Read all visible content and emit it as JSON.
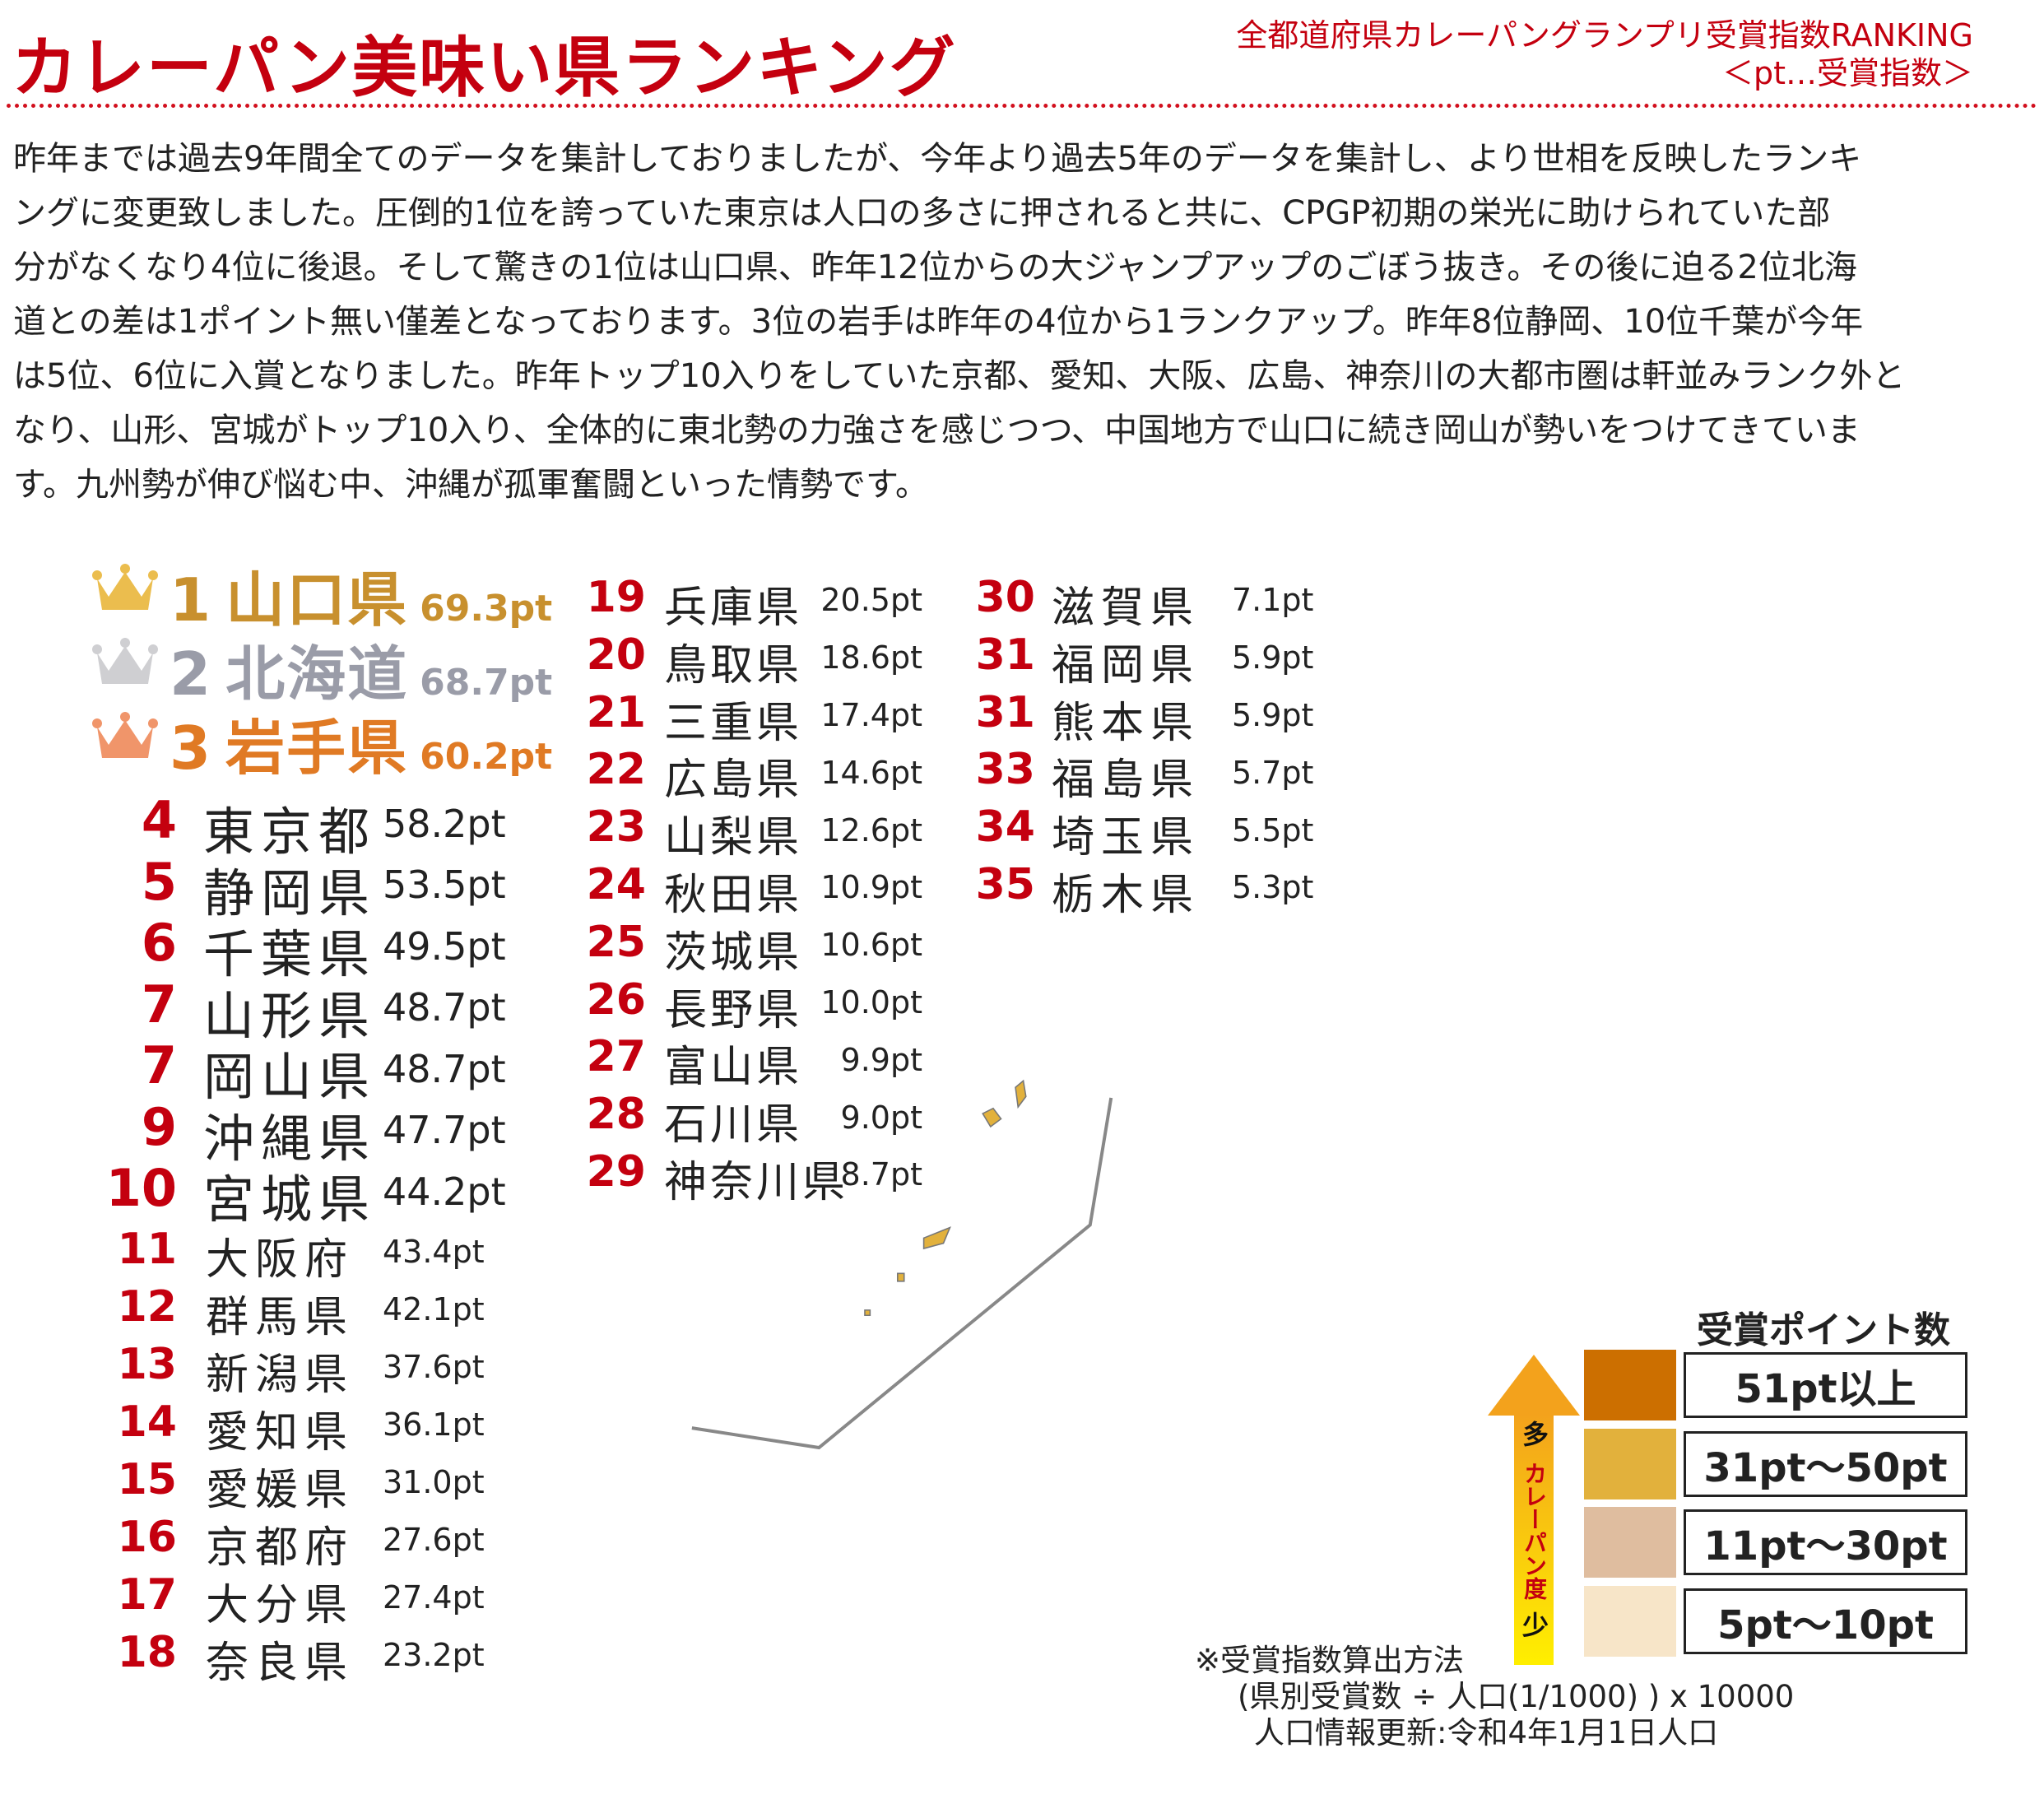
{
  "header": {
    "title": "カレーパン美味い県ランキング",
    "subtitle_line1": "全都道府県カレーパングランプリ受賞指数RANKING",
    "subtitle_line2": "＜pt…受賞指数＞"
  },
  "intro_lines": [
    "昨年までは過去9年間全てのデータを集計しておりましたが、今年より過去5年のデータを集計し、より世相を反映したランキ",
    "ングに変更致しました。圧倒的1位を誇っていた東京は人口の多さに押されると共に、CPGP初期の栄光に助けられていた部",
    "分がなくなり4位に後退。そして驚きの1位は山口県、昨年12位からの大ジャンプアップのごぼう抜き。その後に迫る2位北海",
    "道との差は1ポイント無い僅差となっております。3位の岩手は昨年の4位から1ランクアップ。昨年8位静岡、10位千葉が今年",
    "は5位、6位に入賞となりました。昨年トップ10入りをしていた京都、愛知、大阪、広島、神奈川の大都市圏は軒並みランク外と",
    "なり、山形、宮城がトップ10入り、全体的に東北勢の力強さを感じつつ、中国地方で山口に続き岡山が勢いをつけてきていま",
    "す。九州勢が伸び悩む中、沖縄が孤軍奮闘といった情勢です。"
  ],
  "top3": [
    {
      "rank": "1",
      "name": "山口県",
      "pt": "69.3pt",
      "color": "#c8902e",
      "crown": "#ebbd4e"
    },
    {
      "rank": "2",
      "name": "北海道",
      "pt": "68.7pt",
      "color": "#9a9ca8",
      "crown": "#cfcfd2"
    },
    {
      "rank": "3",
      "name": "岩手県",
      "pt": "60.2pt",
      "color": "#e07a24",
      "crown": "#f0956a"
    }
  ],
  "ranks_4_10": [
    {
      "rank": "4",
      "name": "東京都",
      "pt": "58.2pt"
    },
    {
      "rank": "5",
      "name": "静岡県",
      "pt": "53.5pt"
    },
    {
      "rank": "6",
      "name": "千葉県",
      "pt": "49.5pt"
    },
    {
      "rank": "7",
      "name": "山形県",
      "pt": "48.7pt"
    },
    {
      "rank": "7",
      "name": "岡山県",
      "pt": "48.7pt"
    },
    {
      "rank": "9",
      "name": "沖縄県",
      "pt": "47.7pt"
    },
    {
      "rank": "10",
      "name": "宮城県",
      "pt": "44.2pt"
    }
  ],
  "ranks_11_18": [
    {
      "rank": "11",
      "name": "大阪府",
      "pt": "43.4pt"
    },
    {
      "rank": "12",
      "name": "群馬県",
      "pt": "42.1pt"
    },
    {
      "rank": "13",
      "name": "新潟県",
      "pt": "37.6pt"
    },
    {
      "rank": "14",
      "name": "愛知県",
      "pt": "36.1pt"
    },
    {
      "rank": "15",
      "name": "愛媛県",
      "pt": "31.0pt"
    },
    {
      "rank": "16",
      "name": "京都府",
      "pt": "27.6pt"
    },
    {
      "rank": "17",
      "name": "大分県",
      "pt": "27.4pt"
    },
    {
      "rank": "18",
      "name": "奈良県",
      "pt": "23.2pt"
    }
  ],
  "ranks_19_29": [
    {
      "rank": "19",
      "name": "兵庫県",
      "pt": "20.5pt"
    },
    {
      "rank": "20",
      "name": "鳥取県",
      "pt": "18.6pt"
    },
    {
      "rank": "21",
      "name": "三重県",
      "pt": "17.4pt"
    },
    {
      "rank": "22",
      "name": "広島県",
      "pt": "14.6pt"
    },
    {
      "rank": "23",
      "name": "山梨県",
      "pt": "12.6pt"
    },
    {
      "rank": "24",
      "name": "秋田県",
      "pt": "10.9pt"
    },
    {
      "rank": "25",
      "name": "茨城県",
      "pt": "10.6pt"
    },
    {
      "rank": "26",
      "name": "長野県",
      "pt": "10.0pt"
    },
    {
      "rank": "27",
      "name": "富山県",
      "pt": "9.9pt"
    },
    {
      "rank": "28",
      "name": "石川県",
      "pt": "9.0pt"
    },
    {
      "rank": "29",
      "name": "神奈川県",
      "pt": "8.7pt"
    }
  ],
  "ranks_30_35": [
    {
      "rank": "30",
      "name": "滋賀県",
      "pt": "7.1pt"
    },
    {
      "rank": "31",
      "name": "福岡県",
      "pt": "5.9pt"
    },
    {
      "rank": "31",
      "name": "熊本県",
      "pt": "5.9pt"
    },
    {
      "rank": "33",
      "name": "福島県",
      "pt": "5.7pt"
    },
    {
      "rank": "34",
      "name": "埼玉県",
      "pt": "5.5pt"
    },
    {
      "rank": "35",
      "name": "栃木県",
      "pt": "5.3pt"
    }
  ],
  "legend": {
    "title": "受賞ポイント数",
    "tiers": [
      {
        "label": "51pt以上",
        "color": "#cc6f00"
      },
      {
        "label": "31pt〜50pt",
        "color": "#e2b13c"
      },
      {
        "label": "11pt〜30pt",
        "color": "#dfbd9f"
      },
      {
        "label": "5pt〜10pt",
        "color": "#f7e5c8"
      }
    ],
    "unranked_color": "#ffffff",
    "arrow_top": "多",
    "arrow_mid": "カレーパン度",
    "arrow_bottom": "少"
  },
  "footnote": {
    "line1": "※受賞指数算出方法",
    "line2": "(県別受賞数 ÷ 人口(1/1000) ) x 10000",
    "line3": "人口情報更新:令和4年1月1日人口"
  },
  "map_tiers": {
    "hokkaido": 0,
    "aomori": -1,
    "iwate": 0,
    "akita": 3,
    "yamagata": 1,
    "miyagi": 1,
    "fukushima": 3,
    "niigata": 1,
    "tochigi": 3,
    "ibaraki": 3,
    "gunma": 1,
    "saitama": 3,
    "chiba": 1,
    "tokyo": 0,
    "kanagawa": 3,
    "yamanashi": 2,
    "nagano": 3,
    "toyama": 3,
    "ishikawa": 3,
    "fukui": -1,
    "gifu": -1,
    "shizuoka": 0,
    "aichi": 1,
    "mie": 2,
    "shiga": 3,
    "kyoto": 2,
    "nara": 2,
    "osaka": 1,
    "wakayama": -1,
    "hyogo": 2,
    "okayama": 1,
    "tottori": 2,
    "shimane": -1,
    "hiroshima": 2,
    "yamaguchi": 0,
    "kagawa": -1,
    "tokushima": -1,
    "ehime": 1,
    "kochi": -1,
    "fukuoka": 3,
    "saga": -1,
    "nagasaki": -1,
    "oita": 2,
    "kumamoto": 3,
    "miyazaki": -1,
    "kagoshima": -1,
    "okinawa": 1
  }
}
